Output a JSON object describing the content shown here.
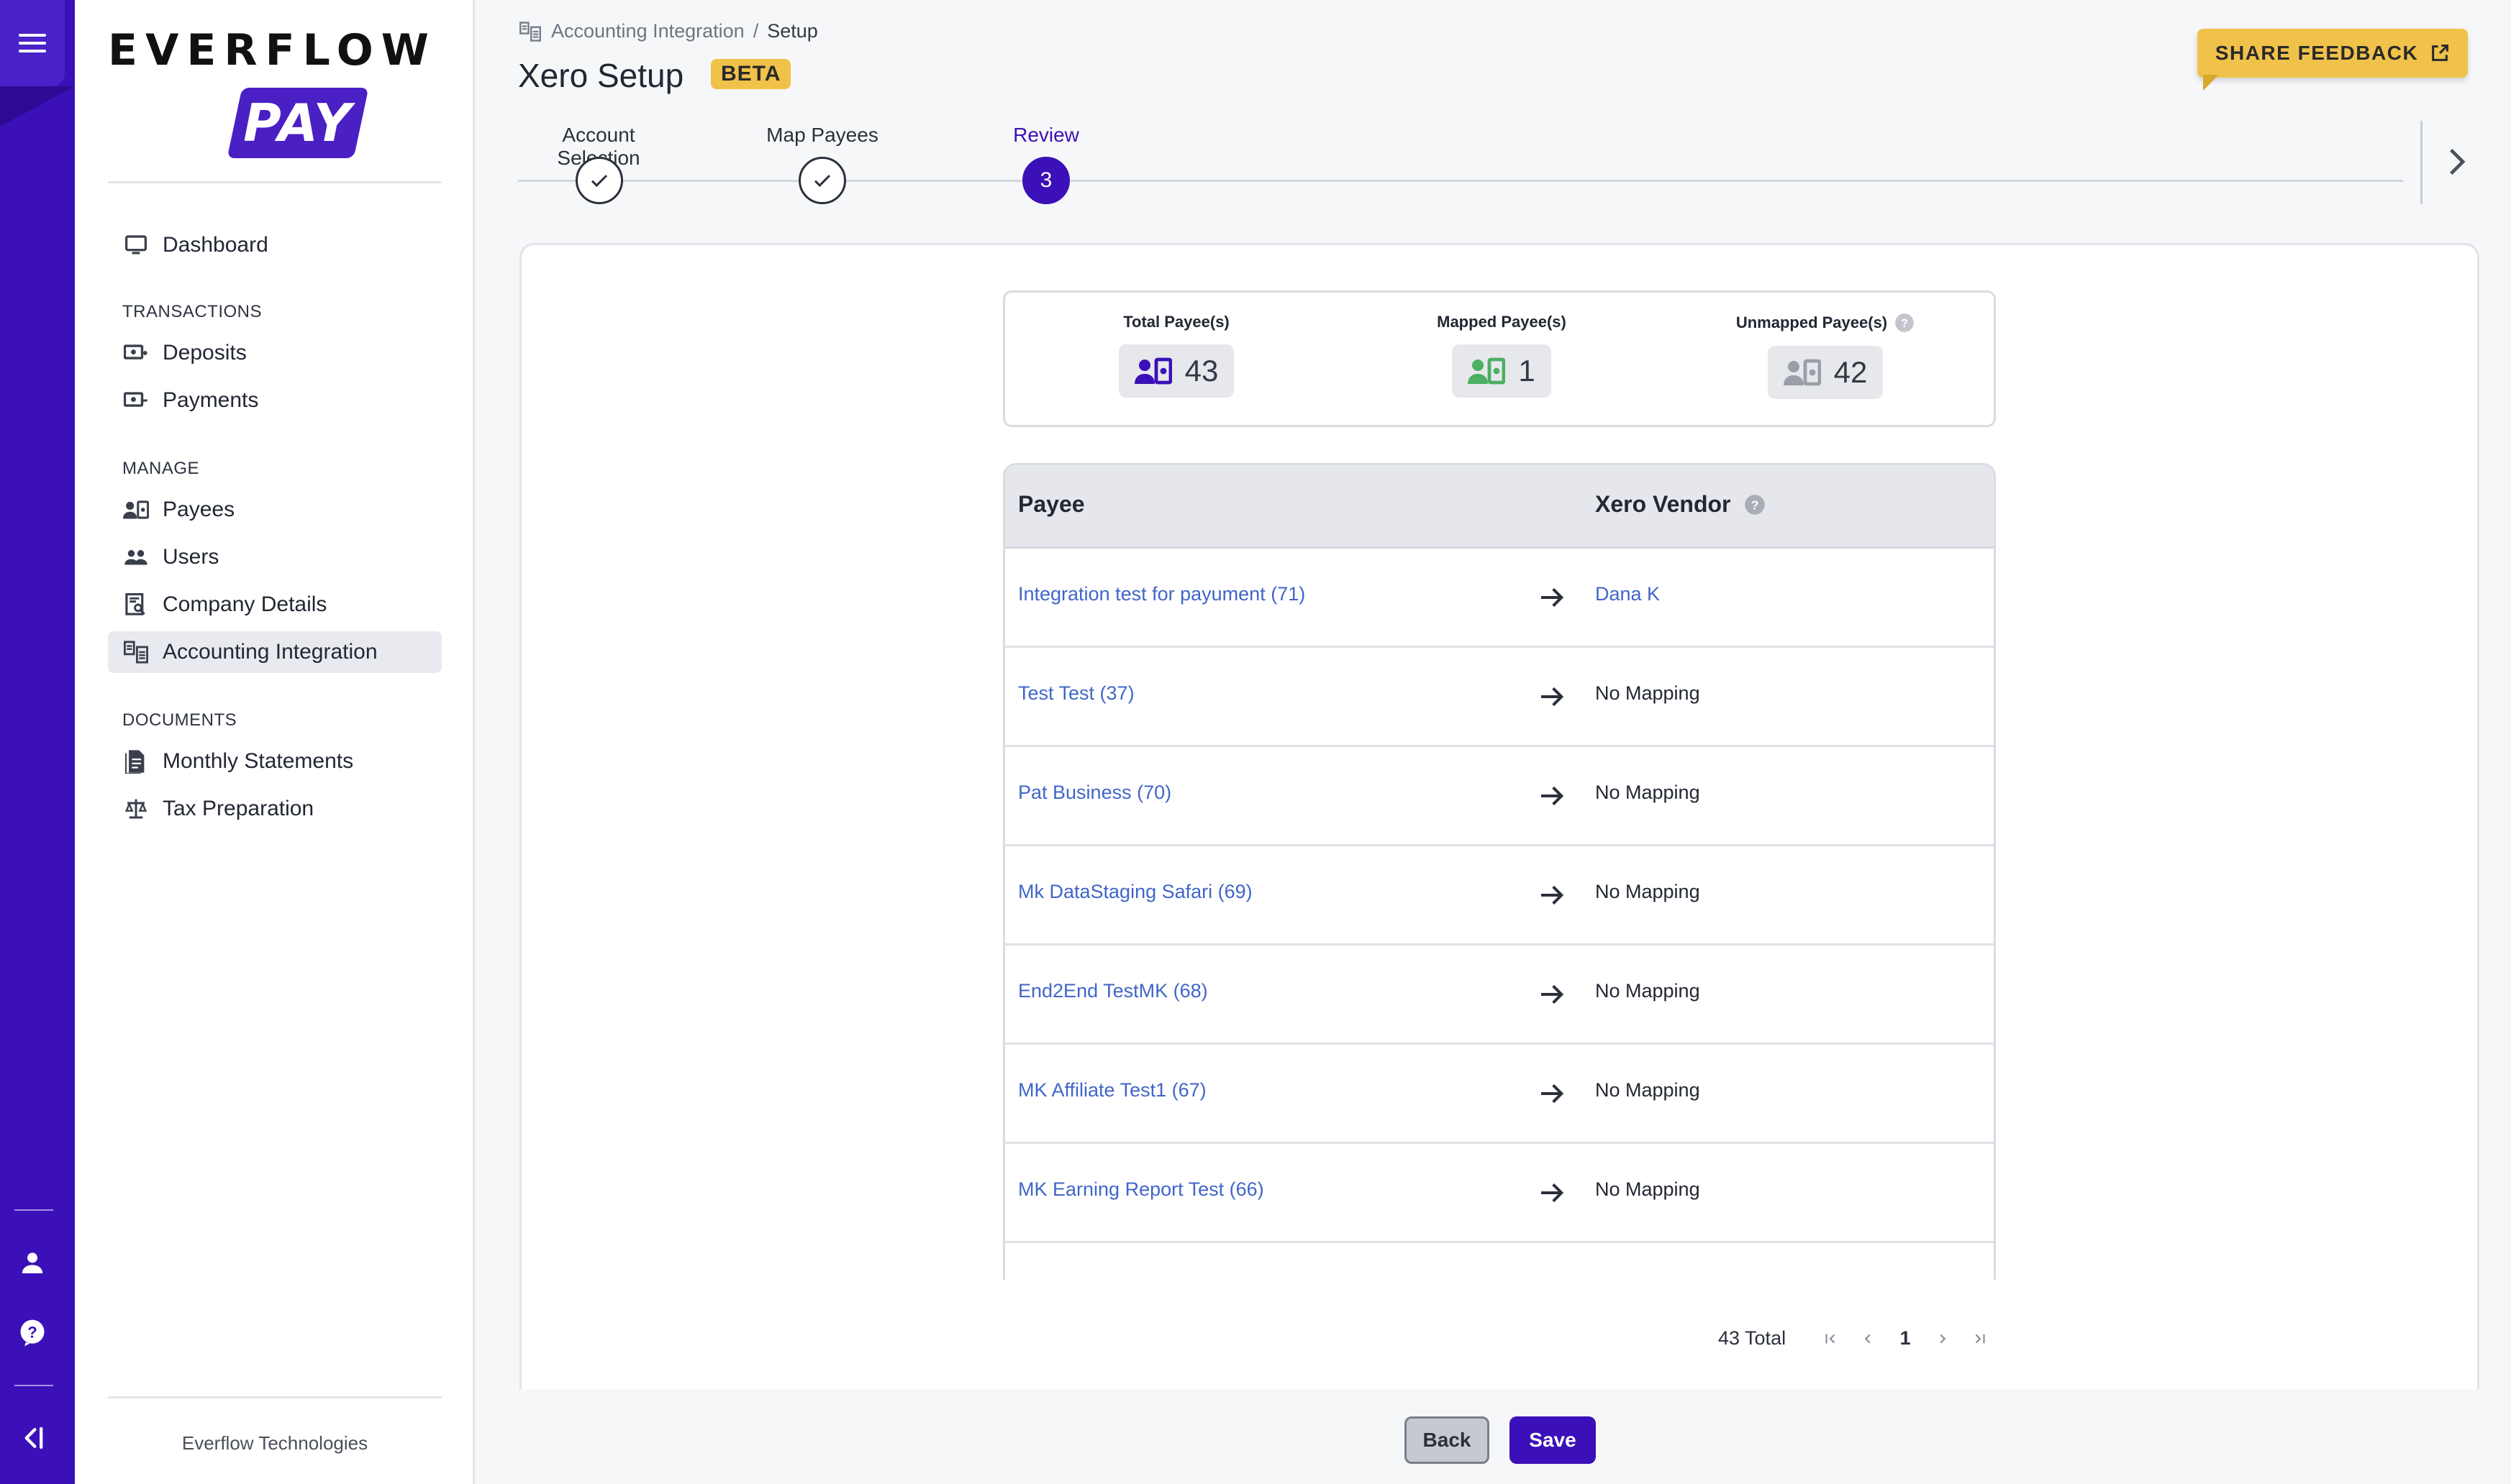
{
  "brand": {
    "word": "EVERFLOW",
    "sub": "PAY",
    "accent": "#3b10b8",
    "yellow": "#f1c24a"
  },
  "sidebar": {
    "dashboard": "Dashboard",
    "sections": {
      "transactions": "TRANSACTIONS",
      "manage": "MANAGE",
      "documents": "DOCUMENTS"
    },
    "items": {
      "deposits": "Deposits",
      "payments": "Payments",
      "payees": "Payees",
      "users": "Users",
      "company_details": "Company Details",
      "accounting_integration": "Accounting Integration",
      "monthly_statements": "Monthly Statements",
      "tax_preparation": "Tax Preparation"
    },
    "footer": "Everflow Technologies"
  },
  "header": {
    "breadcrumb_parent": "Accounting Integration",
    "breadcrumb_sep": "/",
    "breadcrumb_current": "Setup",
    "title": "Xero Setup",
    "badge": "BETA",
    "feedback_label": "SHARE FEEDBACK"
  },
  "stepper": {
    "steps": [
      {
        "label": "Account Selection",
        "state": "done"
      },
      {
        "label": "Map Payees",
        "state": "done"
      },
      {
        "label": "Review",
        "state": "current",
        "number": "3"
      }
    ]
  },
  "summary": {
    "total_label": "Total Payee(s)",
    "total_value": "43",
    "mapped_label": "Mapped Payee(s)",
    "mapped_value": "1",
    "unmapped_label": "Unmapped Payee(s)",
    "unmapped_value": "42"
  },
  "table": {
    "col_payee": "Payee",
    "col_vendor": "Xero Vendor",
    "rows": [
      {
        "payee": "Integration test for payument (71)",
        "vendor": "Dana K"
      },
      {
        "payee": "Test Test (37)",
        "vendor": "No Mapping"
      },
      {
        "payee": "Pat Business (70)",
        "vendor": "No Mapping"
      },
      {
        "payee": "Mk DataStaging Safari (69)",
        "vendor": "No Mapping"
      },
      {
        "payee": "End2End TestMK (68)",
        "vendor": "No Mapping"
      },
      {
        "payee": "MK Affiliate Test1 (67)",
        "vendor": "No Mapping"
      },
      {
        "payee": "MK Earning Report Test (66)",
        "vendor": "No Mapping"
      }
    ]
  },
  "pager": {
    "total": "43 Total",
    "page": "1"
  },
  "footer": {
    "back": "Back",
    "save": "Save"
  }
}
